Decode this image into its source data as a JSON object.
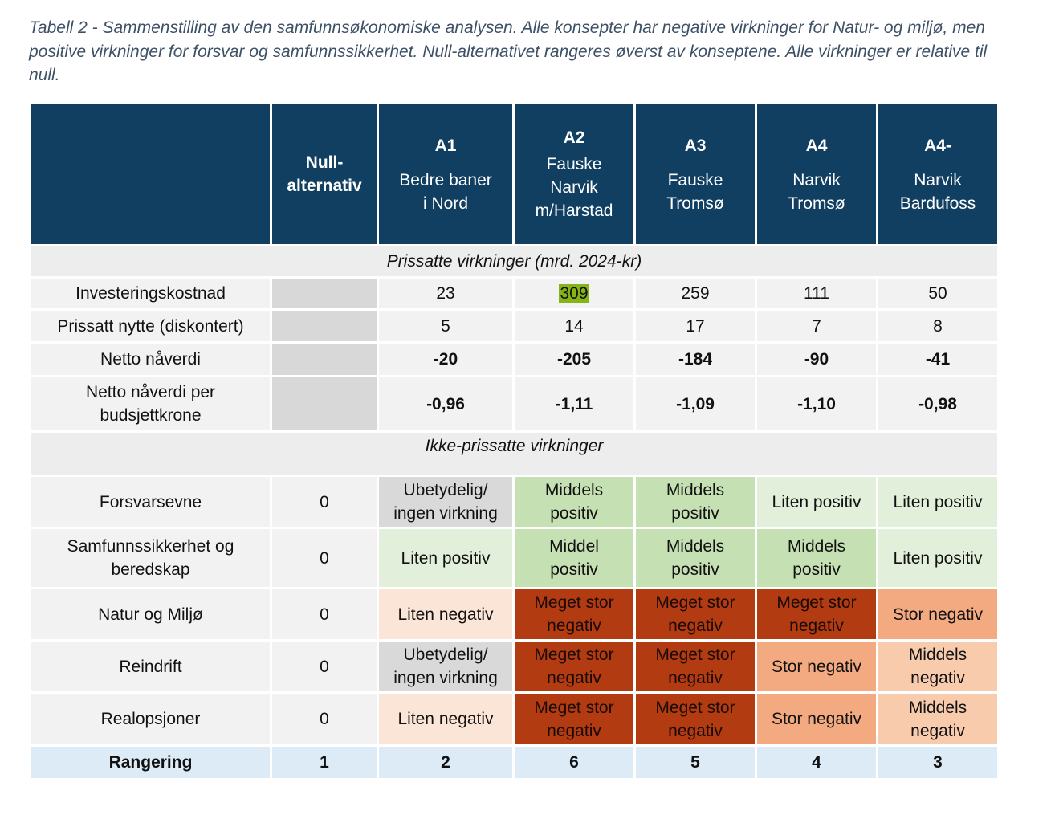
{
  "caption": "Tabell 2 - Sammenstilling av den samfunnsøkonomiske analysen. Alle konsepter har negative virkninger for Natur- og miljø, men positive virkninger for forsvar og samfunnssikkerhet. Null-alternativet rangeres øverst av konseptene. Alle virkninger er relative til null.",
  "header": {
    "null_label": "Null-\nalternativ",
    "concepts": [
      {
        "code": "A1",
        "name": "Bedre baner\ni Nord"
      },
      {
        "code": "A2",
        "name": "Fauske\nNarvik\nm/Harstad"
      },
      {
        "code": "A3",
        "name": "Fauske\nTromsø"
      },
      {
        "code": "A4",
        "name": "Narvik\nTromsø"
      },
      {
        "code": "A4-",
        "name": "Narvik\nBardufoss"
      }
    ]
  },
  "priced": {
    "section_title": "Prissatte virkninger (mrd. 2024-kr)",
    "rows": [
      {
        "label": "Investeringskostnad",
        "values": [
          "23",
          "309",
          "259",
          "111",
          "50"
        ]
      },
      {
        "label": "Prissatt nytte (diskontert)",
        "values": [
          "5",
          "14",
          "17",
          "7",
          "8"
        ]
      },
      {
        "label": "Netto nåverdi",
        "values": [
          "-20",
          "-205",
          "-184",
          "-90",
          "-41"
        ]
      },
      {
        "label": "Netto nåverdi per\nbudsjettkrone",
        "values": [
          "-0,96",
          "-1,11",
          "-1,09",
          "-1,10",
          "-0,98"
        ]
      }
    ]
  },
  "unpriced": {
    "section_title": "Ikke-prissatte virkninger",
    "rows": [
      {
        "label": "Forsvarsevne",
        "null": "0",
        "values": [
          "Ubetydelig/\ningen virkning",
          "Middels\npositiv",
          "Middels\npositiv",
          "Liten positiv",
          "Liten positiv"
        ]
      },
      {
        "label": "Samfunnssikkerhet og\nberedskap",
        "null": "0",
        "values": [
          "Liten positiv",
          "Middel\npositiv",
          "Middels\npositiv",
          "Middels\npositiv",
          "Liten positiv"
        ]
      },
      {
        "label": "Natur og Miljø",
        "null": "0",
        "values": [
          "Liten negativ",
          "Meget stor\nnegativ",
          "Meget stor\nnegativ",
          "Meget stor\nnegativ",
          "Stor negativ"
        ]
      },
      {
        "label": "Reindrift",
        "null": "0",
        "values": [
          "Ubetydelig/\ningen virkning",
          "Meget stor\nnegativ",
          "Meget stor\nnegativ",
          "Stor negativ",
          "Middels\nnegativ"
        ]
      },
      {
        "label": "Realopsjoner",
        "null": "0",
        "values": [
          "Liten negativ",
          "Meget stor\nnegativ",
          "Meget stor\nnegativ",
          "Stor negativ",
          "Middels\nnegativ"
        ]
      }
    ]
  },
  "ranking": {
    "label": "Rangering",
    "values": [
      "1",
      "2",
      "6",
      "5",
      "4",
      "3"
    ]
  },
  "colors": {
    "header_bg": "#113f62",
    "neutral": "#d9d9d9",
    "medium_positive": "#c5e0b3",
    "small_positive": "#e2efda",
    "small_negative": "#fbe5d6",
    "very_large_negative": "#b33b12",
    "large_negative": "#f3aa80",
    "medium_negative": "#f8cbad",
    "highlight": "#86b414",
    "ranking_bg": "#dcebf5"
  }
}
